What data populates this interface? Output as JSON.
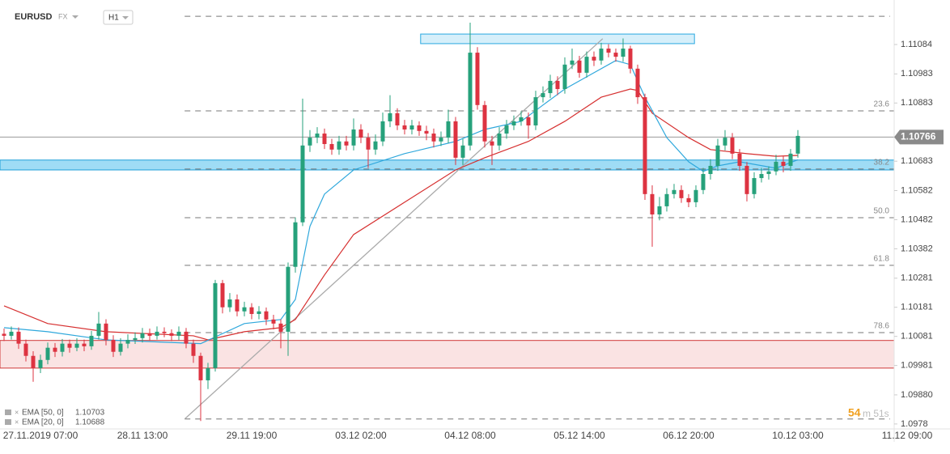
{
  "header": {
    "symbol": "EURUSD",
    "market": "FX",
    "timeframe": "H1"
  },
  "chart_data": {
    "type": "candlestick",
    "categories": [
      null,
      null,
      null,
      null,
      null,
      "27.11.2019 07:00",
      null,
      null,
      null,
      null,
      null,
      null,
      null,
      null,
      null,
      null,
      null,
      null,
      null,
      "28.11 13:00",
      null,
      null,
      null,
      null,
      null,
      null,
      null,
      null,
      null,
      null,
      null,
      null,
      null,
      null,
      "29.11 19:00",
      null,
      null,
      null,
      null,
      null,
      null,
      null,
      null,
      null,
      null,
      null,
      null,
      null,
      null,
      "03.12 02:00",
      null,
      null,
      null,
      null,
      null,
      null,
      null,
      null,
      null,
      null,
      null,
      null,
      null,
      null,
      "04.12 08:00",
      null,
      null,
      null,
      null,
      null,
      null,
      null,
      null,
      null,
      null,
      null,
      null,
      null,
      null,
      "05.12 14:00",
      null,
      null,
      null,
      null,
      null,
      null,
      null,
      null,
      null,
      null,
      null,
      null,
      null,
      null,
      "06.12 20:00",
      null,
      null,
      null,
      null,
      null,
      null,
      null,
      null,
      null,
      null,
      null,
      null,
      null,
      null,
      "10.12 03:00",
      null,
      null,
      null,
      null,
      null,
      null,
      null,
      null,
      null,
      null,
      null,
      null,
      null,
      null,
      "11.12 09:00"
    ],
    "open": [
      1.1009,
      1.10083,
      1.10097,
      1.10056,
      1.10014,
      1.09972,
      1.1,
      1.10042,
      1.10028,
      1.10056,
      1.10042,
      1.10056,
      1.10047,
      1.10083,
      1.10125,
      1.10069,
      1.10028,
      1.10056,
      1.10069,
      1.10075,
      1.10092,
      1.10083,
      1.10097,
      1.10092,
      1.10083,
      1.10097,
      1.10056,
      1.10014,
      1.0993,
      1.09972,
      1.10264,
      1.10181,
      1.10208,
      1.10167,
      1.10181,
      1.10158,
      1.10167,
      1.10139,
      1.10125,
      1.10097,
      1.1032,
      1.10473,
      1.10737,
      1.10764,
      1.10778,
      1.10742,
      1.10723,
      1.10751,
      1.10737,
      1.10792,
      1.10764,
      1.10723,
      1.10751,
      1.1082,
      1.10848,
      1.10806,
      1.10792,
      1.10806,
      1.10787,
      1.10778,
      1.10751,
      1.10764,
      1.1082,
      1.10695,
      1.10737,
      1.11056,
      1.10876,
      1.10751,
      1.10737,
      1.10778,
      1.10806,
      1.1082,
      1.10834,
      1.10806,
      1.10903,
      1.10917,
      1.10959,
      1.10931,
      1.11015,
      1.11029,
      1.10987,
      1.11042,
      1.11029,
      1.1107,
      1.11056,
      1.11042,
      1.1107,
      1.11001,
      1.10903,
      1.1057,
      1.105,
      1.10528,
      1.1057,
      1.10584,
      1.10556,
      1.10542,
      1.10584,
      1.10639,
      1.10667,
      1.10737,
      1.10764,
      1.10709,
      1.10667,
      1.1057,
      1.10625,
      1.10639,
      1.10648,
      1.10681,
      1.10667,
      1.10709,
      null,
      null,
      null,
      null,
      null,
      null,
      null,
      null,
      null,
      null,
      null,
      null,
      null,
      null,
      null
    ],
    "high": [
      1.10108,
      1.10115,
      1.10112,
      1.1007,
      1.1003,
      1.10018,
      1.1006,
      1.10058,
      1.10072,
      1.1007,
      1.10075,
      1.1007,
      1.101,
      1.10165,
      1.1014,
      1.10085,
      1.10075,
      1.10088,
      1.10095,
      1.1011,
      1.10108,
      1.10115,
      1.10112,
      1.10105,
      1.10115,
      1.1011,
      1.1007,
      1.10025,
      1.0999,
      1.10275,
      1.10275,
      1.1023,
      1.10225,
      1.102,
      1.10195,
      1.10185,
      1.1018,
      1.10155,
      1.1014,
      1.10335,
      1.1049,
      1.10898,
      1.1079,
      1.108,
      1.10795,
      1.1076,
      1.1077,
      1.1077,
      1.1083,
      1.1081,
      1.1078,
      1.10775,
      1.1085,
      1.1091,
      1.10865,
      1.10825,
      1.10825,
      1.1082,
      1.10805,
      1.10795,
      1.10785,
      1.1086,
      1.10835,
      1.1076,
      1.11159,
      1.11075,
      1.1089,
      1.1077,
      1.108,
      1.10825,
      1.1084,
      1.10855,
      1.1085,
      1.10925,
      1.1094,
      1.1098,
      1.10975,
      1.1104,
      1.1107,
      1.11045,
      1.1106,
      1.1106,
      1.1109,
      1.11085,
      1.1107,
      1.11105,
      1.1108,
      1.11015,
      1.10915,
      1.106,
      1.1056,
      1.1059,
      1.10605,
      1.106,
      1.1057,
      1.106,
      1.1066,
      1.1069,
      1.1076,
      1.1079,
      1.1078,
      1.10725,
      1.1068,
      1.10645,
      1.1066,
      1.10665,
      1.10705,
      1.107,
      1.10725,
      1.1079,
      null,
      null,
      null,
      null,
      null,
      null,
      null,
      null,
      null,
      null,
      null,
      null,
      null,
      null,
      null
    ],
    "low": [
      1.10065,
      1.1007,
      1.10038,
      1.09995,
      1.09925,
      1.09955,
      1.09985,
      1.1001,
      1.10012,
      1.10025,
      1.1003,
      1.1003,
      1.10035,
      1.1007,
      1.1005,
      1.1001,
      1.10015,
      1.1004,
      1.10055,
      1.1006,
      1.10068,
      1.1007,
      1.10078,
      1.10065,
      1.10068,
      1.1004,
      1.0999,
      1.0979,
      1.099,
      1.0996,
      1.1016,
      1.10165,
      1.1015,
      1.1015,
      1.1014,
      1.1014,
      1.1012,
      1.10105,
      1.1004,
      1.10014,
      1.103,
      1.1046,
      1.10715,
      1.10745,
      1.10725,
      1.10705,
      1.10705,
      1.1072,
      1.1072,
      1.10745,
      1.1066,
      1.10705,
      1.10735,
      1.108,
      1.1079,
      1.10775,
      1.10775,
      1.1077,
      1.10755,
      1.1073,
      1.10735,
      1.10745,
      1.1067,
      1.1067,
      1.1072,
      1.1086,
      1.1073,
      1.1067,
      1.1072,
      1.1076,
      1.1079,
      1.10805,
      1.1076,
      1.1079,
      1.10885,
      1.109,
      1.1091,
      1.10915,
      1.11,
      1.1097,
      1.1097,
      1.1101,
      1.11015,
      1.1104,
      1.11025,
      1.11025,
      1.10985,
      1.1088,
      1.1055,
      1.10389,
      1.1048,
      1.1051,
      1.10555,
      1.1054,
      1.10525,
      1.10525,
      1.1057,
      1.1062,
      1.1065,
      1.1072,
      1.1069,
      1.1065,
      1.10545,
      1.10555,
      1.1061,
      1.1062,
      1.10635,
      1.10645,
      1.1065,
      1.10695,
      null,
      null,
      null,
      null,
      null,
      null,
      null,
      null,
      null,
      null,
      null,
      null,
      null,
      null,
      null
    ],
    "close": [
      1.10083,
      1.10097,
      1.10056,
      1.10014,
      1.09972,
      1.1,
      1.10042,
      1.10028,
      1.10056,
      1.10042,
      1.10056,
      1.10047,
      1.10083,
      1.10125,
      1.10069,
      1.10028,
      1.10056,
      1.10069,
      1.10075,
      1.10092,
      1.10083,
      1.10097,
      1.10092,
      1.10083,
      1.10097,
      1.10056,
      1.10014,
      1.0993,
      1.09972,
      1.10264,
      1.10181,
      1.10208,
      1.10167,
      1.10181,
      1.10158,
      1.10167,
      1.10139,
      1.10125,
      1.10097,
      1.1032,
      1.10473,
      1.10737,
      1.10764,
      1.10778,
      1.10742,
      1.10723,
      1.10751,
      1.10737,
      1.10792,
      1.10764,
      1.10723,
      1.10751,
      1.1082,
      1.10848,
      1.10806,
      1.10792,
      1.10806,
      1.10787,
      1.10778,
      1.10751,
      1.10764,
      1.1082,
      1.10695,
      1.10737,
      1.11056,
      1.10876,
      1.10751,
      1.10737,
      1.10778,
      1.10806,
      1.1082,
      1.10834,
      1.10806,
      1.10903,
      1.10917,
      1.10959,
      1.10931,
      1.11015,
      1.11029,
      1.10987,
      1.11042,
      1.11029,
      1.1107,
      1.11056,
      1.11042,
      1.1107,
      1.11001,
      1.10903,
      1.1057,
      1.105,
      1.10528,
      1.1057,
      1.10584,
      1.10556,
      1.10542,
      1.10584,
      1.10639,
      1.10667,
      1.10737,
      1.10764,
      1.10709,
      1.10667,
      1.1057,
      1.10625,
      1.10639,
      1.10648,
      1.10681,
      1.10667,
      1.10709,
      1.1077,
      null,
      null,
      null,
      null,
      null,
      null,
      null,
      null,
      null,
      null,
      null,
      null,
      null,
      null,
      null
    ],
    "up_color": "#26a17b",
    "down_color": "#dd3341",
    "ylim": [
      1.09763,
      1.11237
    ],
    "yticks": [
      1.11084,
      1.10983,
      1.10883,
      1.10683,
      1.10582,
      1.10482,
      1.10382,
      1.10281,
      1.10181,
      1.10081,
      1.09981,
      {
        "value": 1.0988,
        "label": "1.09880"
      },
      1.0978
    ],
    "current_price": 1.10766,
    "indicators": [
      {
        "name": "EMA [50, 0]",
        "last": 1.10703,
        "color": "#d62f2f",
        "x": [
          0,
          6,
          14,
          26,
          28,
          33,
          38,
          40,
          44,
          48,
          55,
          62,
          66,
          72,
          77,
          82,
          86,
          87,
          89,
          94,
          97,
          102,
          106,
          109
        ],
        "values": [
          1.10186,
          1.10125,
          1.10097,
          1.10083,
          1.10069,
          1.10097,
          1.10111,
          1.10139,
          1.10292,
          1.10431,
          1.10542,
          1.10653,
          1.10695,
          1.10751,
          1.1082,
          1.10903,
          1.10931,
          1.10926,
          1.10848,
          1.10764,
          1.10723,
          1.10709,
          1.107,
          1.10703
        ]
      },
      {
        "name": "EMA [20, 0]",
        "last": 1.10688,
        "color": "#2fa8dc",
        "x": [
          0,
          6,
          14,
          27,
          33,
          38,
          40,
          42,
          44,
          48,
          55,
          62,
          66,
          71,
          74,
          77,
          81,
          84,
          86,
          88,
          91,
          94,
          96,
          98,
          101,
          106,
          109
        ],
        "values": [
          1.10111,
          1.10097,
          1.10069,
          1.10056,
          1.10125,
          1.10139,
          1.10208,
          1.10459,
          1.1057,
          1.10653,
          1.10709,
          1.10751,
          1.10792,
          1.1082,
          1.10876,
          1.10931,
          1.10987,
          1.11029,
          1.11015,
          1.10903,
          1.10764,
          1.10681,
          1.10648,
          1.10667,
          1.10681,
          1.10659,
          1.10688
        ]
      }
    ],
    "trendline": {
      "x": [
        24.8,
        82.2
      ],
      "price": [
        1.09797,
        1.11104
      ],
      "color": "#aaaaaa"
    },
    "fibonacci": {
      "x_start": 24.8,
      "bounds": [
        1.11181,
        1.09797
      ],
      "levels": [
        {
          "label": "23.6",
          "price": 1.10856
        },
        {
          "label": "38.2",
          "price": 1.10656
        },
        {
          "label": "50.0",
          "price": 1.10489
        },
        {
          "label": "61.8",
          "price": 1.10325
        },
        {
          "label": "78.6",
          "price": 1.10094
        }
      ]
    },
    "zones": [
      {
        "x": [
          57.2,
          94.8
        ],
        "range": [
          1.11087,
          1.1112
        ],
        "color": "#29a8e0",
        "fill": "#d6effa"
      },
      {
        "range": [
          1.10653,
          1.10687
        ],
        "color": "#1f9fd8",
        "fill": "#9fdcf5"
      },
      {
        "range": [
          1.09972,
          1.10067
        ],
        "color": "#d03838",
        "fill": "#fae3e3"
      }
    ],
    "countdown": [
      "54",
      "m 51s"
    ]
  }
}
